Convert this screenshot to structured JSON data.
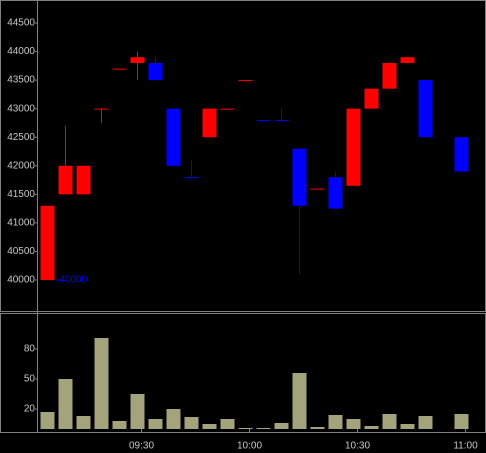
{
  "chart_data": [
    {
      "type": "candlestick",
      "open": [
        40000,
        41500,
        41500,
        43000,
        43700,
        43800,
        43800,
        43000,
        41800,
        42500,
        43000,
        43500,
        42800,
        42800,
        42300,
        41600,
        41800,
        41650,
        43000,
        43350,
        43800,
        43500,
        null,
        42500
      ],
      "high": [
        41300,
        42700,
        42000,
        43000,
        43700,
        44000,
        43900,
        43000,
        42100,
        43000,
        43000,
        43500,
        42800,
        43000,
        42300,
        41600,
        41900,
        43000,
        43350,
        43800,
        43900,
        43500,
        null,
        42500
      ],
      "low": [
        40000,
        41500,
        41500,
        42750,
        43700,
        43500,
        43500,
        42000,
        41800,
        42500,
        43000,
        43500,
        42800,
        42800,
        40100,
        41600,
        41250,
        41650,
        43000,
        43350,
        43800,
        42500,
        null,
        41900
      ],
      "close": [
        41300,
        42000,
        42000,
        43000,
        43700,
        43900,
        43500,
        42000,
        41800,
        43000,
        43000,
        43500,
        42800,
        42800,
        41300,
        41600,
        41250,
        43000,
        43350,
        43800,
        43900,
        42500,
        null,
        41900
      ],
      "colors": [
        "#ff0000",
        "#ff0000",
        "#ff0000",
        "#ff0000",
        "#ff0000",
        "#ff0000",
        "#0000ff",
        "#0000ff",
        "#0000ff",
        "#ff0000",
        "#ff0000",
        "#ff0000",
        "#0000ff",
        "#0000ff",
        "#0000ff",
        "#ff0000",
        "#0000ff",
        "#ff0000",
        "#ff0000",
        "#ff0000",
        "#ff0000",
        "#0000ff",
        null,
        "#0000ff"
      ],
      "low_marker": 40000,
      "low_marker_color": "#0000ff",
      "ylim": [
        39475,
        44815
      ],
      "yticks": [
        40000,
        40500,
        41000,
        41500,
        42000,
        42500,
        43000,
        43500,
        44000,
        44500
      ]
    },
    {
      "type": "bar",
      "categories": [
        null,
        null,
        null,
        null,
        null,
        "09:30",
        null,
        null,
        null,
        null,
        null,
        "10:00",
        null,
        null,
        null,
        null,
        null,
        "10:30",
        null,
        null,
        null,
        null,
        null,
        "11:00"
      ],
      "values": [
        17,
        50,
        13,
        91,
        8,
        35,
        10,
        20,
        12,
        5,
        10,
        1,
        1,
        6,
        56,
        2,
        14,
        10,
        3,
        15,
        5,
        13,
        null,
        15
      ],
      "color": "#a3a37c",
      "ylim": [
        0,
        114
      ],
      "yticks": [
        20,
        50,
        80
      ]
    }
  ]
}
